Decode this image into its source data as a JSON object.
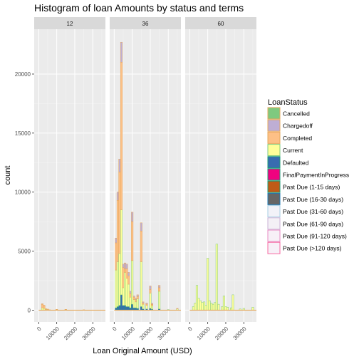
{
  "chart_data": {
    "type": "bar",
    "title": "Histogram of loan Amounts by status and terms",
    "xlabel": "Loan Original Amount (USD)",
    "ylabel": "count",
    "ylim": [
      -1000,
      23800
    ],
    "xlim": [
      -2500,
      37000
    ],
    "y_ticks": [
      0,
      5000,
      10000,
      15000,
      20000
    ],
    "y_tick_labels": [
      "0",
      "5000",
      "10000",
      "15000",
      "20000"
    ],
    "x_ticks": [
      0,
      10000,
      20000,
      30000
    ],
    "x_tick_labels": [
      "0",
      "10000",
      "20000",
      "30000"
    ],
    "bin_width": 1000,
    "grid": true,
    "legend_position": "right",
    "legend": {
      "title": "LoanStatus",
      "entries": [
        {
          "label": "Cancelled",
          "fill": "#7fc97f",
          "stroke": "#e5a85c"
        },
        {
          "label": "Chargedoff",
          "fill": "#beaed4",
          "stroke": "#e5a85c"
        },
        {
          "label": "Completed",
          "fill": "#fdc086",
          "stroke": "#e5a85c"
        },
        {
          "label": "Current",
          "fill": "#ffff99",
          "stroke": "#7fc97f"
        },
        {
          "label": "Defaulted",
          "fill": "#386cb0",
          "stroke": "#1b9e77"
        },
        {
          "label": "FinalPaymentInProgress",
          "fill": "#f0027f",
          "stroke": "#1b9e77"
        },
        {
          "label": "Past Due (1-15 days)",
          "fill": "#bf5b17",
          "stroke": "#1b9e77"
        },
        {
          "label": "Past Due (16-30 days)",
          "fill": "#666666",
          "stroke": "#1f78b4"
        },
        {
          "label": "Past Due (31-60 days)",
          "fill": "#f2f2f8",
          "stroke": "#a6cee3"
        },
        {
          "label": "Past Due (61-90 days)",
          "fill": "#f4f0f6",
          "stroke": "#cab2d6"
        },
        {
          "label": "Past Due (91-120 days)",
          "fill": "#f7f0f7",
          "stroke": "#e78ac3"
        },
        {
          "label": "Past Due (>120 days)",
          "fill": "#f7f0f7",
          "stroke": "#f768a1"
        }
      ]
    },
    "facets": [
      {
        "strip": "12",
        "bins": [
          {
            "x": 2000,
            "Current": 200,
            "Completed": 300,
            "Chargedoff": 40
          },
          {
            "x": 3000,
            "Current": 150,
            "Completed": 230,
            "Chargedoff": 30
          },
          {
            "x": 4000,
            "Current": 60,
            "Completed": 60
          },
          {
            "x": 5000,
            "Current": 40,
            "Completed": 50
          },
          {
            "x": 6000,
            "Current": 15,
            "Completed": 15
          },
          {
            "x": 10000,
            "Current": 30,
            "Completed": 40
          },
          {
            "x": 15000,
            "Current": 30,
            "Completed": 40
          },
          {
            "x": 25000,
            "Current": 15,
            "Completed": 15
          }
        ]
      },
      {
        "strip": "36",
        "bins": [
          {
            "x": 1000,
            "Defaulted": 200,
            "Current": 3200,
            "Completed": 2300,
            "Chargedoff": 400
          },
          {
            "x": 2000,
            "Defaulted": 300,
            "Current": 3800,
            "Completed": 5200,
            "Chargedoff": 700
          },
          {
            "x": 3000,
            "Defaulted": 400,
            "Current": 4400,
            "Completed": 6900,
            "Chargedoff": 1100
          },
          {
            "x": 4000,
            "Defaulted": 1300,
            "Current": 7200,
            "Completed": 12500,
            "Chargedoff": 1700
          },
          {
            "x": 5000,
            "Defaulted": 400,
            "Current": 1500,
            "Completed": 1700,
            "Chargedoff": 300
          },
          {
            "x": 6000,
            "Defaulted": 400,
            "Current": 2800,
            "Completed": 300,
            "Chargedoff": 500
          },
          {
            "x": 7000,
            "Defaulted": 300,
            "Current": 2400,
            "Completed": 800,
            "Chargedoff": 400
          },
          {
            "x": 8000,
            "Defaulted": 300,
            "Current": 1900,
            "Completed": 700,
            "Chargedoff": 300
          },
          {
            "x": 9000,
            "Defaulted": 200,
            "Current": 900,
            "Completed": 300,
            "Chargedoff": 200
          },
          {
            "x": 10000,
            "Defaulted": 500,
            "Current": 3700,
            "Completed": 3300,
            "Chargedoff": 800
          },
          {
            "x": 11000,
            "Defaulted": 200,
            "Current": 700,
            "Completed": 200,
            "Chargedoff": 100
          },
          {
            "x": 12000,
            "Defaulted": 200,
            "Current": 500,
            "Completed": 200,
            "Chargedoff": 100
          },
          {
            "x": 13000,
            "Defaulted": 150,
            "Current": 800,
            "Completed": 200,
            "Chargedoff": 150
          },
          {
            "x": 15000,
            "Defaulted": 300,
            "Current": 3800,
            "Completed": 2600,
            "Chargedoff": 700
          },
          {
            "x": 16000,
            "Defaulted": 100,
            "Current": 400,
            "Completed": 100,
            "Chargedoff": 100
          },
          {
            "x": 18000,
            "Defaulted": 100,
            "Current": 300,
            "Completed": 100,
            "Chargedoff": 100
          },
          {
            "x": 20000,
            "Defaulted": 150,
            "Current": 1300,
            "Completed": 300,
            "Chargedoff": 300
          },
          {
            "x": 21000,
            "Defaulted": 80,
            "Current": 300,
            "Completed": 100,
            "Chargedoff": 100
          },
          {
            "x": 25000,
            "Defaulted": 100,
            "Current": 1500,
            "Completed": 300,
            "Chargedoff": 200
          },
          {
            "x": 30000,
            "Current": 50
          },
          {
            "x": 35000,
            "Current": 100,
            "Chargedoff": 50
          }
        ]
      },
      {
        "strip": "60",
        "bins": [
          {
            "x": 2000,
            "Current": 300
          },
          {
            "x": 3000,
            "Current": 600
          },
          {
            "x": 4000,
            "Current": 2100
          },
          {
            "x": 5000,
            "Current": 1000
          },
          {
            "x": 6000,
            "Current": 800
          },
          {
            "x": 7000,
            "Current": 650
          },
          {
            "x": 8000,
            "Current": 700
          },
          {
            "x": 9000,
            "Current": 400
          },
          {
            "x": 10000,
            "Current": 4400
          },
          {
            "x": 11000,
            "Current": 800
          },
          {
            "x": 12000,
            "Current": 600
          },
          {
            "x": 13000,
            "Current": 500
          },
          {
            "x": 14000,
            "Current": 650
          },
          {
            "x": 15000,
            "Current": 5600
          },
          {
            "x": 16000,
            "Current": 500
          },
          {
            "x": 18000,
            "Current": 300
          },
          {
            "x": 19000,
            "Current": 1200
          },
          {
            "x": 20000,
            "Current": 300
          },
          {
            "x": 21000,
            "Current": 250
          },
          {
            "x": 23000,
            "Current": 200
          },
          {
            "x": 24000,
            "Current": 1300
          },
          {
            "x": 28000,
            "Current": 100
          },
          {
            "x": 30000,
            "Current": 150
          },
          {
            "x": 35000,
            "Current": 250
          }
        ]
      }
    ]
  }
}
